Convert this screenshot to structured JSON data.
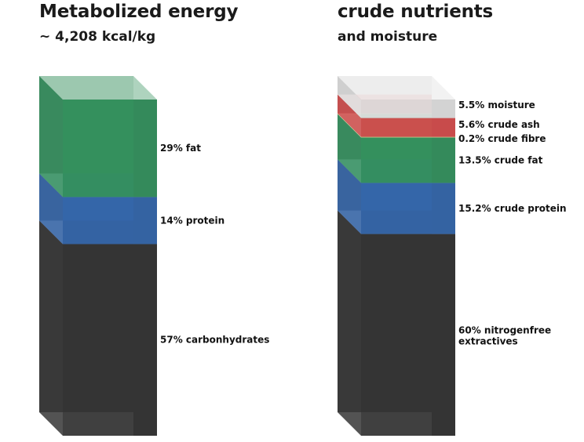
{
  "chart_data": [
    {
      "type": "stacked-bar",
      "title": "Metabolized energy",
      "subtitle": "~ 4,208 kcal/kg",
      "unit": "%",
      "segments": [
        {
          "label": "57% carbonhydrates",
          "value": 57,
          "color": "#2b2b2b"
        },
        {
          "label": "14% protein",
          "value": 14,
          "color": "#2b5fa6"
        },
        {
          "label": "29% fat",
          "value": 29,
          "color": "#2b8c57"
        }
      ]
    },
    {
      "type": "stacked-bar",
      "title": "crude nutrients",
      "subtitle": "and moisture",
      "unit": "%",
      "segments": [
        {
          "label": [
            "60% nitrogenfree",
            "extractives"
          ],
          "value": 60,
          "color": "#2b2b2b"
        },
        {
          "label": "15.2% crude protein",
          "value": 15.2,
          "color": "#2b5fa6"
        },
        {
          "label": "13.5% crude fat",
          "value": 13.5,
          "color": "#2b8c57"
        },
        {
          "label": "0.2% crude fibre",
          "value": 0.2,
          "color": "#d9c98a"
        },
        {
          "label": "5.6% crude ash",
          "value": 5.6,
          "color": "#d24545"
        },
        {
          "label": "5.5% moisture",
          "value": 5.5,
          "color": "#dedede"
        }
      ]
    }
  ]
}
